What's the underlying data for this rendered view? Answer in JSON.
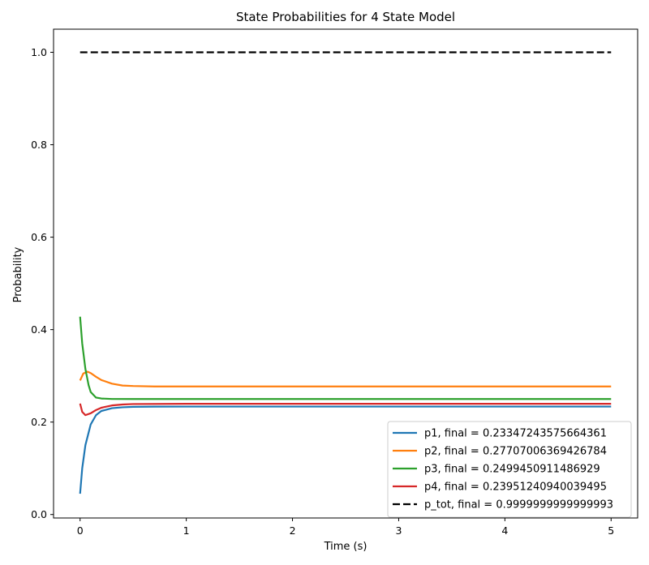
{
  "chart_data": {
    "type": "line",
    "title": "State Probabilities for 4 State Model",
    "xlabel": "Time (s)",
    "ylabel": "Probability",
    "xlim": [
      -0.25,
      5.25
    ],
    "ylim": [
      -0.0075,
      1.05
    ],
    "xticks": [
      0,
      1,
      2,
      3,
      4,
      5
    ],
    "xtick_labels": [
      "0",
      "1",
      "2",
      "3",
      "4",
      "5"
    ],
    "yticks": [
      0.0,
      0.2,
      0.4,
      0.6,
      0.8,
      1.0
    ],
    "ytick_labels": [
      "0.0",
      "0.2",
      "0.4",
      "0.6",
      "0.8",
      "1.0"
    ],
    "grid": false,
    "legend_position": "lower-right",
    "series": [
      {
        "name": "p1, final = 0.23347243575664361",
        "color": "#1f77b4",
        "style": "solid",
        "x": [
          0,
          0.02,
          0.05,
          0.1,
          0.15,
          0.2,
          0.3,
          0.4,
          0.5,
          0.7,
          1,
          2,
          3,
          4,
          5
        ],
        "y": [
          0.045,
          0.1,
          0.15,
          0.195,
          0.215,
          0.224,
          0.23,
          0.232,
          0.233,
          0.2334,
          0.2335,
          0.2335,
          0.2335,
          0.2335,
          0.2335
        ]
      },
      {
        "name": "p2, final = 0.27707006369426784",
        "color": "#ff7f0e",
        "style": "solid",
        "x": [
          0,
          0.03,
          0.07,
          0.1,
          0.15,
          0.2,
          0.3,
          0.4,
          0.5,
          0.7,
          1,
          2,
          3,
          4,
          5
        ],
        "y": [
          0.29,
          0.305,
          0.309,
          0.306,
          0.298,
          0.291,
          0.283,
          0.279,
          0.278,
          0.2771,
          0.2771,
          0.2771,
          0.2771,
          0.2771,
          0.2771
        ]
      },
      {
        "name": "p3, final = 0.2499450911486929",
        "color": "#2ca02c",
        "style": "solid",
        "x": [
          0,
          0.02,
          0.05,
          0.08,
          0.1,
          0.15,
          0.2,
          0.3,
          0.5,
          1,
          2,
          3,
          4,
          5
        ],
        "y": [
          0.428,
          0.37,
          0.315,
          0.28,
          0.265,
          0.253,
          0.251,
          0.25,
          0.2499,
          0.2499,
          0.2499,
          0.2499,
          0.2499,
          0.2499
        ]
      },
      {
        "name": "p4, final = 0.23951240940039495",
        "color": "#d62728",
        "style": "solid",
        "x": [
          0,
          0.02,
          0.05,
          0.1,
          0.15,
          0.2,
          0.3,
          0.4,
          0.5,
          1,
          2,
          3,
          4,
          5
        ],
        "y": [
          0.24,
          0.222,
          0.215,
          0.219,
          0.226,
          0.231,
          0.236,
          0.238,
          0.239,
          0.2395,
          0.2395,
          0.2395,
          0.2395,
          0.2395
        ]
      },
      {
        "name": "p_tot, final = 0.9999999999999993",
        "color": "#000000",
        "style": "dashed",
        "x": [
          0,
          5
        ],
        "y": [
          1.0,
          1.0
        ]
      }
    ]
  }
}
